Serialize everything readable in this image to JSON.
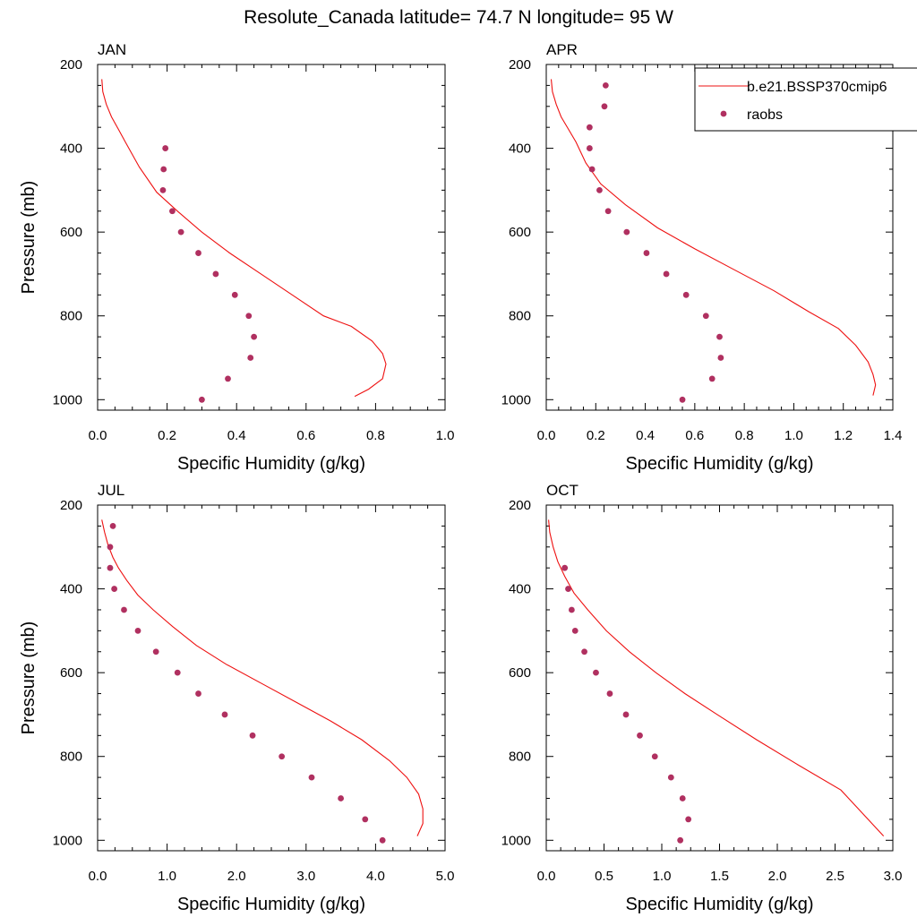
{
  "title": "Resolute_Canada  latitude= 74.7 N longitude= 95 W",
  "legend": {
    "model": "b.e21.BSSP370cmip6",
    "obs": "raobs"
  },
  "colors": {
    "model": "#ee1111",
    "obs": "#b03060"
  },
  "chart_data": [
    {
      "type": "line",
      "title": "JAN",
      "xlabel": "Specific Humidity (g/kg)",
      "ylabel": "Pressure (mb)",
      "xlim": [
        0,
        1.0
      ],
      "ylim": [
        1025,
        200
      ],
      "xticks": [
        "0.0",
        "0.2",
        "0.4",
        "0.6",
        "0.8",
        "1.0"
      ],
      "yticks": [
        "200",
        "400",
        "600",
        "800",
        "1000"
      ],
      "series": [
        {
          "name": "b.e21.BSSP370cmip6",
          "x": [
            0.012,
            0.015,
            0.025,
            0.04,
            0.06,
            0.08,
            0.12,
            0.17,
            0.23,
            0.3,
            0.38,
            0.47,
            0.56,
            0.65,
            0.73,
            0.79,
            0.82,
            0.83,
            0.82,
            0.78,
            0.74
          ],
          "y": [
            235,
            265,
            295,
            325,
            355,
            385,
            445,
            505,
            550,
            600,
            650,
            700,
            750,
            800,
            825,
            860,
            890,
            915,
            950,
            975,
            992
          ]
        },
        {
          "name": "raobs",
          "x": [
            0.195,
            0.19,
            0.188,
            0.215,
            0.24,
            0.29,
            0.34,
            0.395,
            0.435,
            0.45,
            0.44,
            0.375,
            0.3
          ],
          "y": [
            400,
            450,
            500,
            550,
            600,
            650,
            700,
            750,
            800,
            850,
            900,
            950,
            1000
          ]
        }
      ]
    },
    {
      "type": "line",
      "title": "APR",
      "xlabel": "Specific Humidity (g/kg)",
      "ylabel": "",
      "xlim": [
        0,
        1.4
      ],
      "ylim": [
        1025,
        200
      ],
      "xticks": [
        "0.0",
        "0.2",
        "0.4",
        "0.6",
        "0.8",
        "1.0",
        "1.2",
        "1.4"
      ],
      "yticks": [
        "200",
        "400",
        "600",
        "800",
        "1000"
      ],
      "series": [
        {
          "name": "b.e21.BSSP370cmip6",
          "x": [
            0.02,
            0.025,
            0.04,
            0.06,
            0.09,
            0.12,
            0.16,
            0.22,
            0.32,
            0.45,
            0.6,
            0.76,
            0.92,
            1.06,
            1.18,
            1.25,
            1.3,
            1.32,
            1.33,
            1.32
          ],
          "y": [
            235,
            265,
            295,
            325,
            355,
            385,
            435,
            485,
            535,
            590,
            640,
            690,
            740,
            790,
            830,
            870,
            910,
            940,
            965,
            990
          ]
        },
        {
          "name": "raobs",
          "x": [
            0.24,
            0.235,
            0.175,
            0.175,
            0.185,
            0.215,
            0.25,
            0.325,
            0.405,
            0.485,
            0.565,
            0.645,
            0.7,
            0.705,
            0.67,
            0.55
          ],
          "y": [
            250,
            300,
            350,
            400,
            450,
            500,
            550,
            600,
            650,
            700,
            750,
            800,
            850,
            900,
            950,
            1000
          ]
        }
      ]
    },
    {
      "type": "line",
      "title": "JUL",
      "xlabel": "Specific Humidity (g/kg)",
      "ylabel": "Pressure (mb)",
      "xlim": [
        0,
        5.0
      ],
      "ylim": [
        1025,
        200
      ],
      "xticks": [
        "0.0",
        "1.0",
        "2.0",
        "3.0",
        "4.0",
        "5.0"
      ],
      "yticks": [
        "200",
        "400",
        "600",
        "800",
        "1000"
      ],
      "series": [
        {
          "name": "b.e21.BSSP370cmip6",
          "x": [
            0.06,
            0.1,
            0.15,
            0.22,
            0.3,
            0.42,
            0.58,
            0.8,
            1.08,
            1.42,
            1.85,
            2.35,
            2.85,
            3.35,
            3.8,
            4.2,
            4.45,
            4.62,
            4.68,
            4.68,
            4.6
          ],
          "y": [
            235,
            265,
            295,
            325,
            350,
            380,
            415,
            450,
            490,
            535,
            580,
            625,
            670,
            715,
            760,
            810,
            850,
            890,
            925,
            960,
            990
          ]
        },
        {
          "name": "raobs",
          "x": [
            0.22,
            0.18,
            0.18,
            0.24,
            0.38,
            0.58,
            0.84,
            1.15,
            1.45,
            1.83,
            2.23,
            2.65,
            3.08,
            3.5,
            3.85,
            4.1
          ],
          "y": [
            250,
            300,
            350,
            400,
            450,
            500,
            550,
            600,
            650,
            700,
            750,
            800,
            850,
            900,
            950,
            1000
          ]
        }
      ]
    },
    {
      "type": "line",
      "title": "OCT",
      "xlabel": "Specific Humidity (g/kg)",
      "ylabel": "",
      "xlim": [
        0,
        3.0
      ],
      "ylim": [
        1025,
        200
      ],
      "xticks": [
        "0.0",
        "0.5",
        "1.0",
        "1.5",
        "2.0",
        "2.5",
        "3.0"
      ],
      "yticks": [
        "200",
        "400",
        "600",
        "800",
        "1000"
      ],
      "series": [
        {
          "name": "b.e21.BSSP370cmip6",
          "x": [
            0.02,
            0.03,
            0.06,
            0.1,
            0.16,
            0.24,
            0.36,
            0.52,
            0.72,
            0.95,
            1.2,
            1.48,
            1.82,
            2.18,
            2.55,
            2.92
          ],
          "y": [
            235,
            265,
            300,
            335,
            370,
            410,
            450,
            500,
            550,
            600,
            650,
            700,
            760,
            820,
            880,
            990
          ]
        },
        {
          "name": "raobs",
          "x": [
            0.16,
            0.19,
            0.22,
            0.25,
            0.33,
            0.43,
            0.55,
            0.69,
            0.81,
            0.94,
            1.08,
            1.18,
            1.23,
            1.16
          ],
          "y": [
            350,
            400,
            450,
            500,
            550,
            600,
            650,
            700,
            750,
            800,
            850,
            900,
            950,
            1000
          ]
        }
      ]
    }
  ]
}
